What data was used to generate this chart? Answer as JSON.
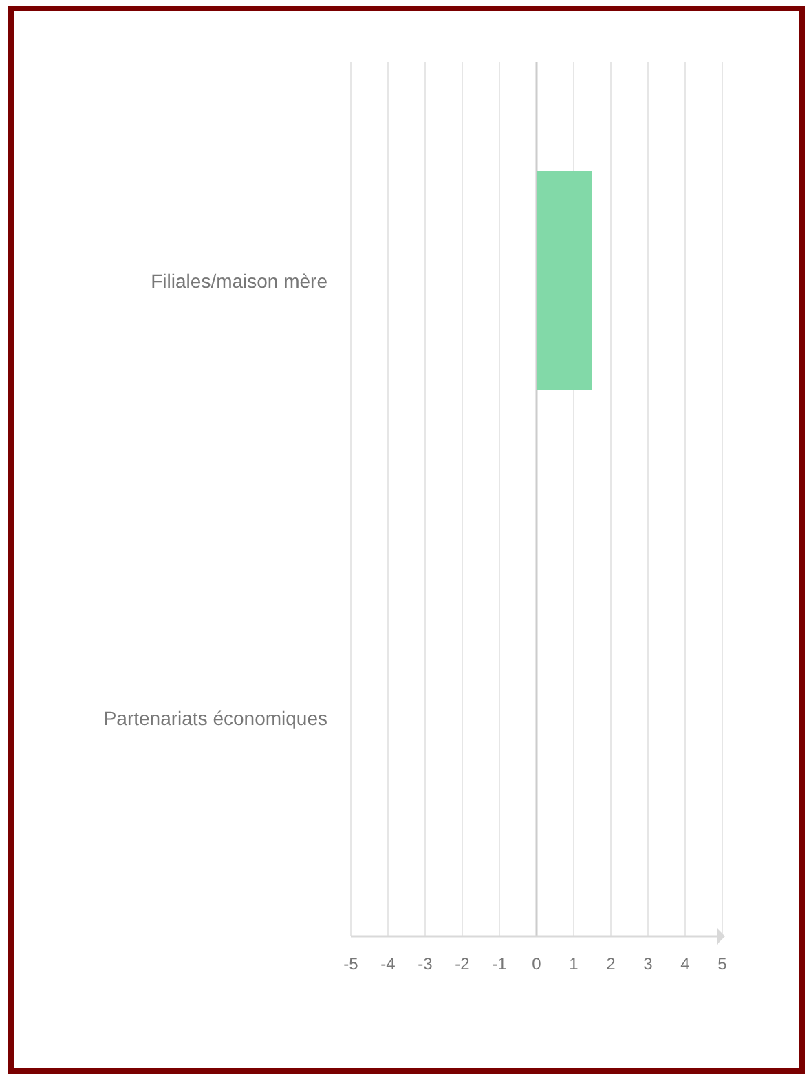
{
  "chart_data": {
    "type": "bar",
    "orientation": "horizontal",
    "categories": [
      "Filiales/maison mère",
      "Partenariats économiques"
    ],
    "values": [
      1.5,
      null
    ],
    "color": "#82d9a8",
    "xlim": [
      -5,
      5
    ],
    "xticks": [
      -5,
      -4,
      -3,
      -2,
      -1,
      0,
      1,
      2,
      3,
      4,
      5
    ],
    "grid": "x"
  }
}
